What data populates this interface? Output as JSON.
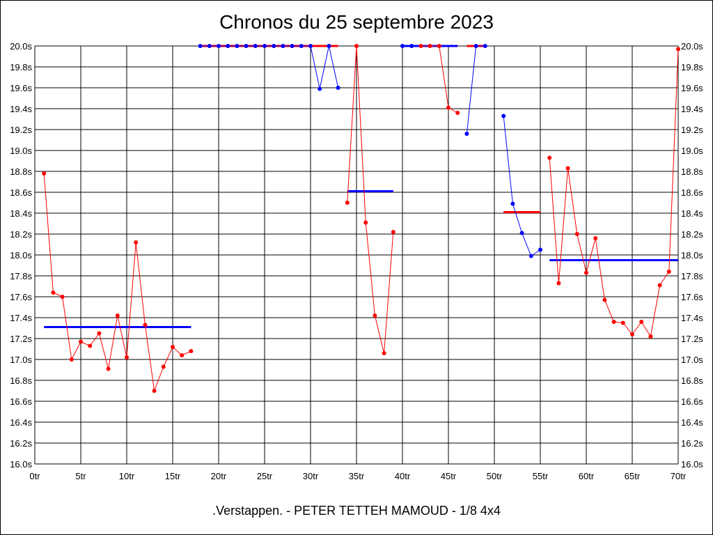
{
  "chart_data": {
    "type": "line",
    "title": "Chronos du 25 septembre 2023",
    "subtitle": ".Verstappen. - PETER TETTEH MAMOUD - 1/8 4x4",
    "xlabel": "",
    "ylabel": "",
    "xlim": [
      0,
      70
    ],
    "ylim": [
      16.0,
      20.0
    ],
    "grid": true,
    "y_ticks": [
      "16.0s",
      "16.2s",
      "16.4s",
      "16.6s",
      "16.8s",
      "17.0s",
      "17.2s",
      "17.4s",
      "17.6s",
      "17.8s",
      "18.0s",
      "18.2s",
      "18.4s",
      "18.6s",
      "18.8s",
      "19.0s",
      "19.2s",
      "19.4s",
      "19.6s",
      "19.8s",
      "20.0s"
    ],
    "x_ticks": [
      "0tr",
      "5tr",
      "10tr",
      "15tr",
      "20tr",
      "25tr",
      "30tr",
      "35tr",
      "40tr",
      "45tr",
      "50tr",
      "55tr",
      "60tr",
      "65tr",
      "70tr"
    ],
    "colors": {
      "red": "#ff0000",
      "blue": "#0000ff"
    },
    "segments": [
      {
        "color": "red",
        "points": [
          [
            1,
            18.78
          ],
          [
            2,
            17.64
          ],
          [
            3,
            17.6
          ],
          [
            4,
            17.0
          ],
          [
            5,
            17.17
          ],
          [
            6,
            17.13
          ],
          [
            7,
            17.25
          ],
          [
            8,
            16.91
          ],
          [
            9,
            17.42
          ],
          [
            10,
            17.02
          ],
          [
            11,
            18.12
          ],
          [
            12,
            17.33
          ],
          [
            13,
            16.7
          ],
          [
            14,
            16.93
          ],
          [
            15,
            17.12
          ],
          [
            16,
            17.04
          ],
          [
            17,
            17.08
          ]
        ]
      },
      {
        "color": "blue",
        "points": [
          [
            18,
            20.0
          ],
          [
            19,
            20.0
          ],
          [
            20,
            20.0
          ],
          [
            21,
            20.0
          ],
          [
            22,
            20.0
          ],
          [
            23,
            20.0
          ],
          [
            24,
            20.0
          ],
          [
            25,
            20.0
          ],
          [
            26,
            20.0
          ],
          [
            27,
            20.0
          ],
          [
            28,
            20.0
          ],
          [
            29,
            20.0
          ],
          [
            30,
            20.0
          ],
          [
            31,
            19.59
          ],
          [
            32,
            20.0
          ],
          [
            33,
            19.6
          ]
        ]
      },
      {
        "color": "red",
        "points": [
          [
            34,
            18.5
          ],
          [
            35,
            20.0
          ],
          [
            36,
            18.31
          ],
          [
            37,
            17.42
          ],
          [
            38,
            17.06
          ],
          [
            39,
            18.22
          ]
        ]
      },
      {
        "color": "blue",
        "points": [
          [
            40,
            20.0
          ],
          [
            41,
            20.0
          ]
        ]
      },
      {
        "color": "red",
        "points": [
          [
            42,
            20.0
          ],
          [
            43,
            20.0
          ],
          [
            44,
            20.0
          ],
          [
            45,
            19.41
          ],
          [
            46,
            19.36
          ]
        ]
      },
      {
        "color": "blue",
        "points": [
          [
            47,
            19.16
          ],
          [
            48,
            20.0
          ],
          [
            49,
            20.0
          ]
        ]
      },
      {
        "color": "blue",
        "points": [
          [
            51,
            19.33
          ],
          [
            52,
            18.49
          ],
          [
            53,
            18.21
          ],
          [
            54,
            17.99
          ],
          [
            55,
            18.05
          ]
        ]
      },
      {
        "color": "red",
        "points": [
          [
            56,
            18.93
          ],
          [
            57,
            17.73
          ],
          [
            58,
            18.83
          ],
          [
            59,
            18.2
          ],
          [
            60,
            17.83
          ],
          [
            61,
            18.16
          ],
          [
            62,
            17.57
          ],
          [
            63,
            17.36
          ],
          [
            64,
            17.35
          ],
          [
            65,
            17.24
          ],
          [
            66,
            17.36
          ],
          [
            67,
            17.22
          ],
          [
            68,
            17.71
          ],
          [
            69,
            17.84
          ],
          [
            70,
            19.97
          ]
        ]
      }
    ],
    "averages": [
      {
        "color": "blue",
        "x": [
          1,
          17
        ],
        "value": 17.31
      },
      {
        "color": "red",
        "x": [
          18,
          33
        ],
        "value": 20.0
      },
      {
        "color": "blue",
        "x": [
          34,
          39
        ],
        "value": 18.61
      },
      {
        "color": "blue",
        "x": [
          40,
          46
        ],
        "value": 20.0
      },
      {
        "color": "red",
        "x": [
          47,
          49
        ],
        "value": 20.0
      },
      {
        "color": "red",
        "x": [
          51,
          55
        ],
        "value": 18.41
      },
      {
        "color": "blue",
        "x": [
          56,
          70
        ],
        "value": 17.95
      }
    ]
  }
}
